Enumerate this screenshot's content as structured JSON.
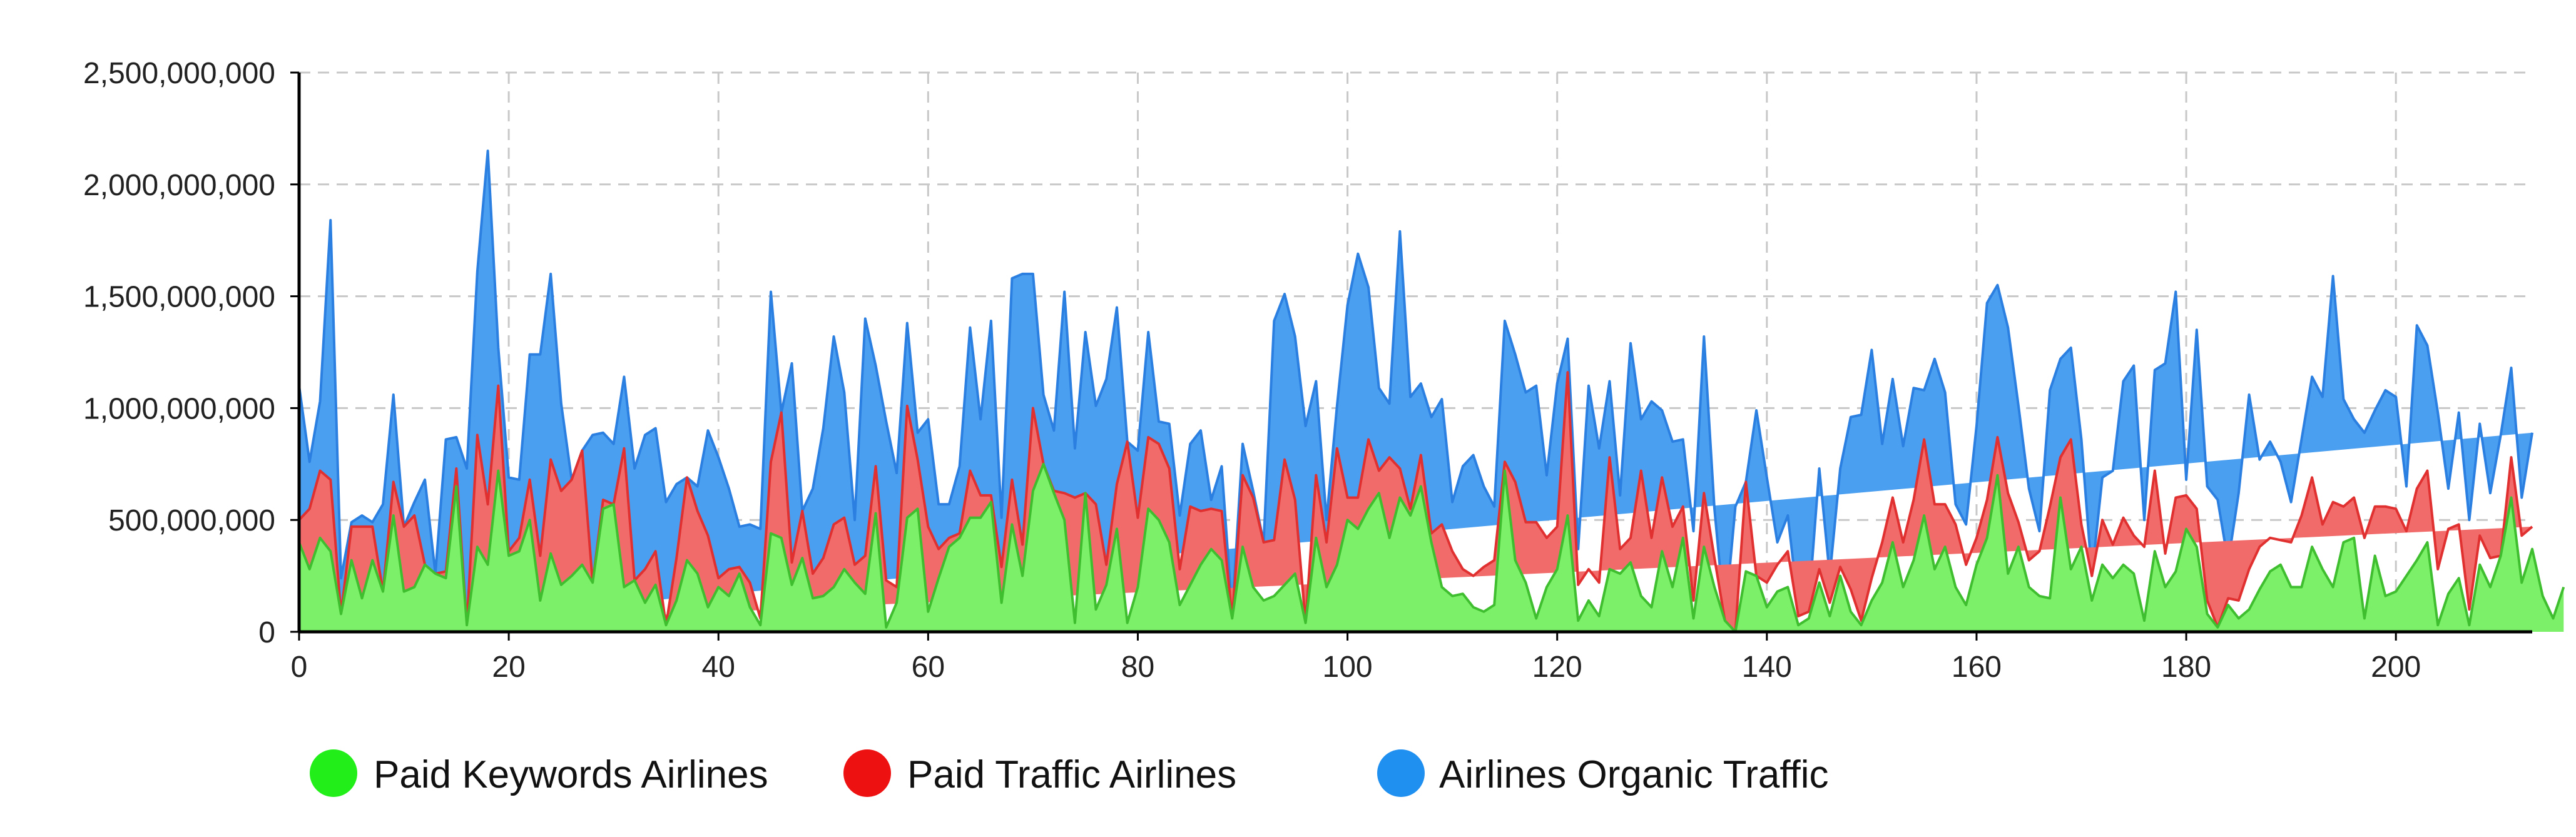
{
  "chart_data": {
    "type": "area",
    "stacked": true,
    "grid": true,
    "legend_position": "bottom",
    "xlim": [
      0,
      213
    ],
    "ylim": [
      0,
      2500000000
    ],
    "x_ticks": [
      "0",
      "20",
      "40",
      "60",
      "80",
      "100",
      "120",
      "140",
      "160",
      "180",
      "200"
    ],
    "y_ticks": [
      "0",
      "500,000,000",
      "1,000,000,000",
      "1,500,000,000",
      "2,000,000,000",
      "2,500,000,000"
    ],
    "series": [
      {
        "name": "Paid Keywords Airlines",
        "color": "#7df06a",
        "line_color": "#3fbf2f",
        "legend_color": "#22ee1a",
        "values": [
          400000000,
          280000000,
          420000000,
          360000000,
          80000000,
          320000000,
          150000000,
          320000000,
          180000000,
          520000000,
          180000000,
          200000000,
          300000000,
          260000000,
          240000000,
          650000000,
          30000000,
          380000000,
          300000000,
          720000000,
          340000000,
          360000000,
          500000000,
          140000000,
          350000000,
          210000000,
          250000000,
          300000000,
          220000000,
          550000000,
          570000000,
          200000000,
          230000000,
          130000000,
          210000000,
          30000000,
          140000000,
          320000000,
          260000000,
          110000000,
          200000000,
          160000000,
          260000000,
          110000000,
          30000000,
          440000000,
          420000000,
          210000000,
          330000000,
          150000000,
          160000000,
          200000000,
          280000000,
          220000000,
          170000000,
          530000000,
          20000000,
          130000000,
          510000000,
          550000000,
          90000000,
          240000000,
          380000000,
          420000000,
          510000000,
          510000000,
          580000000,
          130000000,
          480000000,
          250000000,
          630000000,
          750000000,
          620000000,
          500000000,
          40000000,
          620000000,
          100000000,
          210000000,
          460000000,
          40000000,
          200000000,
          550000000,
          500000000,
          400000000,
          120000000,
          210000000,
          300000000,
          370000000,
          320000000,
          60000000,
          380000000,
          200000000,
          140000000,
          160000000,
          210000000,
          260000000,
          40000000,
          420000000,
          200000000,
          300000000,
          500000000,
          460000000,
          550000000,
          620000000,
          420000000,
          600000000,
          520000000,
          650000000,
          400000000,
          200000000,
          160000000,
          170000000,
          110000000,
          90000000,
          120000000,
          720000000,
          320000000,
          220000000,
          60000000,
          200000000,
          280000000,
          520000000,
          50000000,
          140000000,
          70000000,
          280000000,
          260000000,
          310000000,
          160000000,
          110000000,
          360000000,
          200000000,
          420000000,
          60000000,
          380000000,
          200000000,
          50000000,
          0,
          270000000,
          250000000,
          110000000,
          180000000,
          200000000,
          30000000,
          60000000,
          220000000,
          70000000,
          250000000,
          90000000,
          30000000,
          140000000,
          220000000,
          400000000,
          200000000,
          320000000,
          520000000,
          280000000,
          380000000,
          200000000,
          120000000,
          300000000,
          420000000,
          700000000,
          260000000,
          380000000,
          200000000,
          160000000,
          150000000,
          600000000,
          280000000,
          380000000,
          140000000,
          300000000,
          240000000,
          300000000,
          260000000,
          50000000,
          360000000,
          200000000,
          270000000,
          460000000,
          380000000,
          80000000,
          20000000,
          120000000,
          60000000,
          100000000,
          190000000,
          270000000,
          300000000,
          200000000,
          200000000,
          380000000,
          280000000,
          200000000,
          400000000,
          420000000,
          60000000,
          340000000,
          160000000,
          180000000,
          250000000,
          320000000,
          400000000,
          30000000,
          170000000,
          240000000,
          30000000,
          300000000,
          200000000,
          340000000,
          600000000,
          220000000,
          370000000,
          160000000,
          60000000,
          200000000
        ]
      },
      {
        "name": "Paid Traffic Airlines",
        "color": "#f26b6b",
        "line_color": "#e03030",
        "legend_color": "#ee1111",
        "values": [
          100000000,
          270000000,
          300000000,
          320000000,
          0,
          150000000,
          320000000,
          150000000,
          0,
          150000000,
          290000000,
          320000000,
          0,
          0,
          30000000,
          80000000,
          0,
          500000000,
          270000000,
          380000000,
          20000000,
          60000000,
          180000000,
          200000000,
          420000000,
          420000000,
          430000000,
          510000000,
          0,
          40000000,
          0,
          620000000,
          0,
          150000000,
          150000000,
          0,
          190000000,
          370000000,
          280000000,
          320000000,
          40000000,
          120000000,
          30000000,
          110000000,
          30000000,
          320000000,
          560000000,
          100000000,
          210000000,
          110000000,
          170000000,
          280000000,
          230000000,
          80000000,
          170000000,
          210000000,
          210000000,
          70000000,
          500000000,
          220000000,
          380000000,
          130000000,
          40000000,
          20000000,
          210000000,
          100000000,
          30000000,
          160000000,
          200000000,
          140000000,
          370000000,
          0,
          10000000,
          120000000,
          560000000,
          0,
          470000000,
          90000000,
          200000000,
          810000000,
          310000000,
          320000000,
          340000000,
          330000000,
          160000000,
          350000000,
          240000000,
          180000000,
          220000000,
          0,
          320000000,
          400000000,
          260000000,
          250000000,
          560000000,
          330000000,
          0,
          280000000,
          200000000,
          520000000,
          100000000,
          140000000,
          310000000,
          100000000,
          360000000,
          130000000,
          30000000,
          140000000,
          40000000,
          280000000,
          200000000,
          110000000,
          140000000,
          200000000,
          200000000,
          40000000,
          350000000,
          270000000,
          430000000,
          220000000,
          190000000,
          640000000,
          160000000,
          140000000,
          150000000,
          500000000,
          110000000,
          110000000,
          560000000,
          310000000,
          330000000,
          270000000,
          140000000,
          80000000,
          240000000,
          130000000,
          0,
          0,
          400000000,
          0,
          110000000,
          120000000,
          160000000,
          40000000,
          30000000,
          60000000,
          60000000,
          40000000,
          100000000,
          20000000,
          100000000,
          180000000,
          200000000,
          200000000,
          270000000,
          340000000,
          290000000,
          190000000,
          280000000,
          180000000,
          120000000,
          170000000,
          170000000,
          360000000,
          110000000,
          120000000,
          200000000,
          410000000,
          180000000,
          580000000,
          100000000,
          110000000,
          200000000,
          150000000,
          210000000,
          170000000,
          330000000,
          360000000,
          150000000,
          330000000,
          150000000,
          170000000,
          60000000,
          0,
          30000000,
          80000000,
          180000000,
          190000000,
          150000000,
          110000000,
          200000000,
          320000000,
          310000000,
          200000000,
          380000000,
          160000000,
          180000000,
          360000000,
          220000000,
          400000000,
          370000000,
          200000000,
          320000000,
          320000000,
          250000000,
          290000000,
          240000000,
          70000000,
          130000000,
          130000000,
          0,
          180000000,
          210000000,
          100000000
        ]
      },
      {
        "name": "Airlines Organic Traffic",
        "color": "#4b9ff0",
        "line_color": "#2a7fe0",
        "legend_color": "#1f8ff0",
        "values": [
          600000000,
          210000000,
          310000000,
          1160000000,
          160000000,
          20000000,
          50000000,
          20000000,
          390000000,
          390000000,
          0,
          60000000,
          380000000,
          0,
          590000000,
          140000000,
          700000000,
          730000000,
          1580000000,
          170000000,
          330000000,
          260000000,
          560000000,
          900000000,
          830000000,
          390000000,
          0,
          0,
          660000000,
          300000000,
          270000000,
          320000000,
          500000000,
          600000000,
          550000000,
          550000000,
          330000000,
          0,
          110000000,
          470000000,
          540000000,
          360000000,
          180000000,
          260000000,
          400000000,
          760000000,
          0,
          890000000,
          0,
          380000000,
          580000000,
          840000000,
          560000000,
          200000000,
          1060000000,
          450000000,
          710000000,
          510000000,
          370000000,
          120000000,
          480000000,
          200000000,
          150000000,
          300000000,
          640000000,
          340000000,
          780000000,
          220000000,
          900000000,
          1210000000,
          600000000,
          310000000,
          270000000,
          900000000,
          220000000,
          720000000,
          440000000,
          830000000,
          790000000,
          0,
          300000000,
          470000000,
          100000000,
          200000000,
          240000000,
          280000000,
          360000000,
          40000000,
          200000000,
          20000000,
          140000000,
          30000000,
          0,
          980000000,
          740000000,
          730000000,
          880000000,
          420000000,
          100000000,
          190000000,
          860000000,
          1090000000,
          680000000,
          370000000,
          240000000,
          1060000000,
          500000000,
          320000000,
          520000000,
          560000000,
          220000000,
          460000000,
          540000000,
          360000000,
          240000000,
          630000000,
          570000000,
          580000000,
          610000000,
          280000000,
          640000000,
          150000000,
          160000000,
          820000000,
          600000000,
          340000000,
          240000000,
          870000000,
          230000000,
          610000000,
          300000000,
          380000000,
          300000000,
          310000000,
          700000000,
          220000000,
          0,
          560000000,
          0,
          740000000,
          470000000,
          100000000,
          160000000,
          40000000,
          30000000,
          450000000,
          120000000,
          440000000,
          770000000,
          920000000,
          1020000000,
          440000000,
          530000000,
          430000000,
          500000000,
          220000000,
          650000000,
          500000000,
          90000000,
          180000000,
          500000000,
          880000000,
          680000000,
          740000000,
          520000000,
          320000000,
          90000000,
          520000000,
          440000000,
          410000000,
          380000000,
          0,
          190000000,
          330000000,
          610000000,
          760000000,
          120000000,
          450000000,
          850000000,
          920000000,
          70000000,
          800000000,
          510000000,
          570000000,
          160000000,
          480000000,
          780000000,
          390000000,
          430000000,
          350000000,
          180000000,
          340000000,
          450000000,
          570000000,
          1010000000,
          480000000,
          350000000,
          470000000,
          430000000,
          520000000,
          500000000,
          200000000,
          730000000,
          560000000,
          700000000,
          180000000,
          500000000,
          400000000,
          500000000,
          290000000,
          540000000,
          400000000,
          170000000,
          420000000,
          440000000,
          430000000
        ]
      }
    ]
  },
  "legend": {
    "items": [
      {
        "label": "Paid Keywords Airlines"
      },
      {
        "label": "Paid Traffic Airlines"
      },
      {
        "label": "Airlines Organic Traffic"
      }
    ]
  }
}
